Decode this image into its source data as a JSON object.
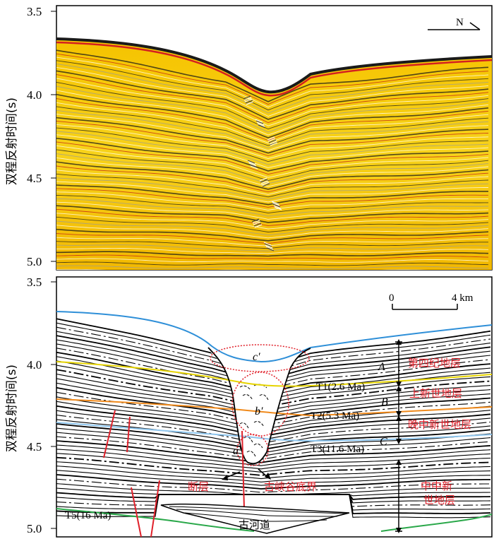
{
  "top_panel": {
    "y_axis_label": "双程反射时间(s)",
    "y_ticks": [
      "3.5",
      "4.0",
      "4.5",
      "5.0"
    ],
    "north_label": "N"
  },
  "bottom_panel": {
    "y_axis_label": "双程反射时间(s)",
    "y_ticks": [
      "3.5",
      "4.0",
      "4.5",
      "5.0"
    ],
    "scale_start": "0",
    "scale_end": "4 km",
    "horizons": [
      {
        "label": "T1(2.6 Ma)",
        "color": "#e6d400"
      },
      {
        "label": "T2(5.3 Ma)",
        "color": "#f08a1c"
      },
      {
        "label": "T3(11.6 Ma)",
        "color": "#8fc6ee"
      },
      {
        "label": "T5(16 Ma)",
        "color": "#2aa84a"
      }
    ],
    "units": {
      "A": "A",
      "B": "B",
      "C": "C"
    },
    "valley_labels": {
      "c_prime": "c′",
      "b_prime": "b′",
      "a_prime": "a′"
    },
    "strata": [
      "第四纪地层",
      "上新世地层",
      "晚中新世地层",
      "中中新",
      "世地层"
    ],
    "annotations": {
      "fault": "断层",
      "canyon_base": "古峡谷底界",
      "paleochannel": "古河道"
    },
    "colors": {
      "seafloor": "#2e8fd8",
      "fault": "#e0202a",
      "ellipse": "#e0202a"
    }
  }
}
